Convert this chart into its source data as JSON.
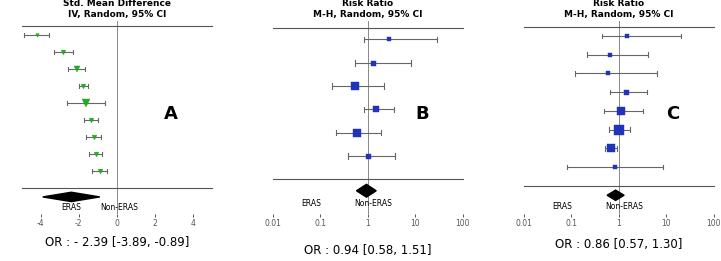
{
  "panel_A": {
    "title": "Std. Mean Difference\nIV, Random, 95% CI",
    "label": "A",
    "xlim": [
      -5,
      5
    ],
    "xticks": [
      -4,
      -2,
      0,
      2,
      4
    ],
    "xlabel_left": "ERAS",
    "xlabel_right": "Non-ERAS",
    "or_text": "OR : - 2.39 [-3.89, -0.89]",
    "studies": [
      {
        "y": 9,
        "mean": -4.2,
        "ci_low": -4.85,
        "ci_high": -3.55,
        "size": 3
      },
      {
        "y": 8,
        "mean": -2.8,
        "ci_low": -3.3,
        "ci_high": -2.3,
        "size": 4
      },
      {
        "y": 7,
        "mean": -2.1,
        "ci_low": -2.55,
        "ci_high": -1.65,
        "size": 5
      },
      {
        "y": 6,
        "mean": -1.75,
        "ci_low": -2.0,
        "ci_high": -1.5,
        "size": 4
      },
      {
        "y": 5,
        "mean": -1.6,
        "ci_low": -2.6,
        "ci_high": -0.6,
        "size": 6
      },
      {
        "y": 4,
        "mean": -1.35,
        "ci_low": -1.7,
        "ci_high": -1.0,
        "size": 4
      },
      {
        "y": 3,
        "mean": -1.2,
        "ci_low": -1.6,
        "ci_high": -0.8,
        "size": 4
      },
      {
        "y": 2,
        "mean": -1.1,
        "ci_low": -1.45,
        "ci_high": -0.75,
        "size": 4
      },
      {
        "y": 1,
        "mean": -0.9,
        "ci_low": -1.3,
        "ci_high": -0.5,
        "size": 4
      }
    ],
    "diamond": {
      "mean": -2.39,
      "ci_low": -3.89,
      "ci_high": -0.89,
      "y": -0.5
    },
    "vline": 0,
    "color": "#22aa22",
    "is_log": false
  },
  "panel_B": {
    "title": "Risk Ratio\nM-H, Random, 95% CI",
    "label": "B",
    "xlim": [
      -2.0,
      2.0
    ],
    "xticks_log": [
      0.01,
      0.1,
      1,
      10,
      100
    ],
    "xlabel_left": "ERAS",
    "xlabel_right": "Non-ERAS",
    "or_text": "OR : 0.94 [0.58, 1.51]",
    "studies": [
      {
        "y": 6,
        "mean": 2.8,
        "ci_low": 0.85,
        "ci_high": 28.0,
        "size": 3
      },
      {
        "y": 5,
        "mean": 1.3,
        "ci_low": 0.55,
        "ci_high": 8.0,
        "size": 4
      },
      {
        "y": 4,
        "mean": 0.55,
        "ci_low": 0.18,
        "ci_high": 2.2,
        "size": 6
      },
      {
        "y": 3,
        "mean": 1.5,
        "ci_low": 0.85,
        "ci_high": 3.5,
        "size": 5
      },
      {
        "y": 2,
        "mean": 0.6,
        "ci_low": 0.22,
        "ci_high": 1.9,
        "size": 7
      },
      {
        "y": 1,
        "mean": 1.0,
        "ci_low": 0.38,
        "ci_high": 3.8,
        "size": 4
      }
    ],
    "diamond": {
      "mean": 0.94,
      "ci_low": 0.58,
      "ci_high": 1.51,
      "y": -0.5
    },
    "vline": 1,
    "color": "#2233bb",
    "is_log": true
  },
  "panel_C": {
    "title": "Risk Ratio\nM-H, Random, 95% CI",
    "label": "C",
    "xlim": [
      -2.0,
      2.0
    ],
    "xticks_log": [
      0.01,
      0.1,
      1,
      10,
      100
    ],
    "xlabel_left": "ERAS",
    "xlabel_right": "Non-ERAS",
    "or_text": "OR : 0.86 [0.57, 1.30]",
    "studies": [
      {
        "y": 8,
        "mean": 1.5,
        "ci_low": 0.45,
        "ci_high": 20.0,
        "size": 3
      },
      {
        "y": 7,
        "mean": 0.65,
        "ci_low": 0.22,
        "ci_high": 4.2,
        "size": 3
      },
      {
        "y": 6,
        "mean": 0.6,
        "ci_low": 0.12,
        "ci_high": 6.5,
        "size": 3
      },
      {
        "y": 5,
        "mean": 1.4,
        "ci_low": 0.65,
        "ci_high": 4.0,
        "size": 4
      },
      {
        "y": 4,
        "mean": 1.1,
        "ci_low": 0.5,
        "ci_high": 3.2,
        "size": 6
      },
      {
        "y": 3,
        "mean": 1.0,
        "ci_low": 0.62,
        "ci_high": 1.75,
        "size": 8
      },
      {
        "y": 2,
        "mean": 0.7,
        "ci_low": 0.52,
        "ci_high": 0.92,
        "size": 7
      },
      {
        "y": 1,
        "mean": 0.85,
        "ci_low": 0.08,
        "ci_high": 8.5,
        "size": 3
      }
    ],
    "diamond": {
      "mean": 0.86,
      "ci_low": 0.57,
      "ci_high": 1.3,
      "y": -0.5
    },
    "vline": 1,
    "color": "#2233bb",
    "is_log": true
  },
  "background_color": "#ffffff",
  "title_fontsize": 6.5,
  "label_fontsize": 13,
  "tick_fontsize": 5.5,
  "axis_label_fontsize": 5.5,
  "or_fontsize": 8.5
}
